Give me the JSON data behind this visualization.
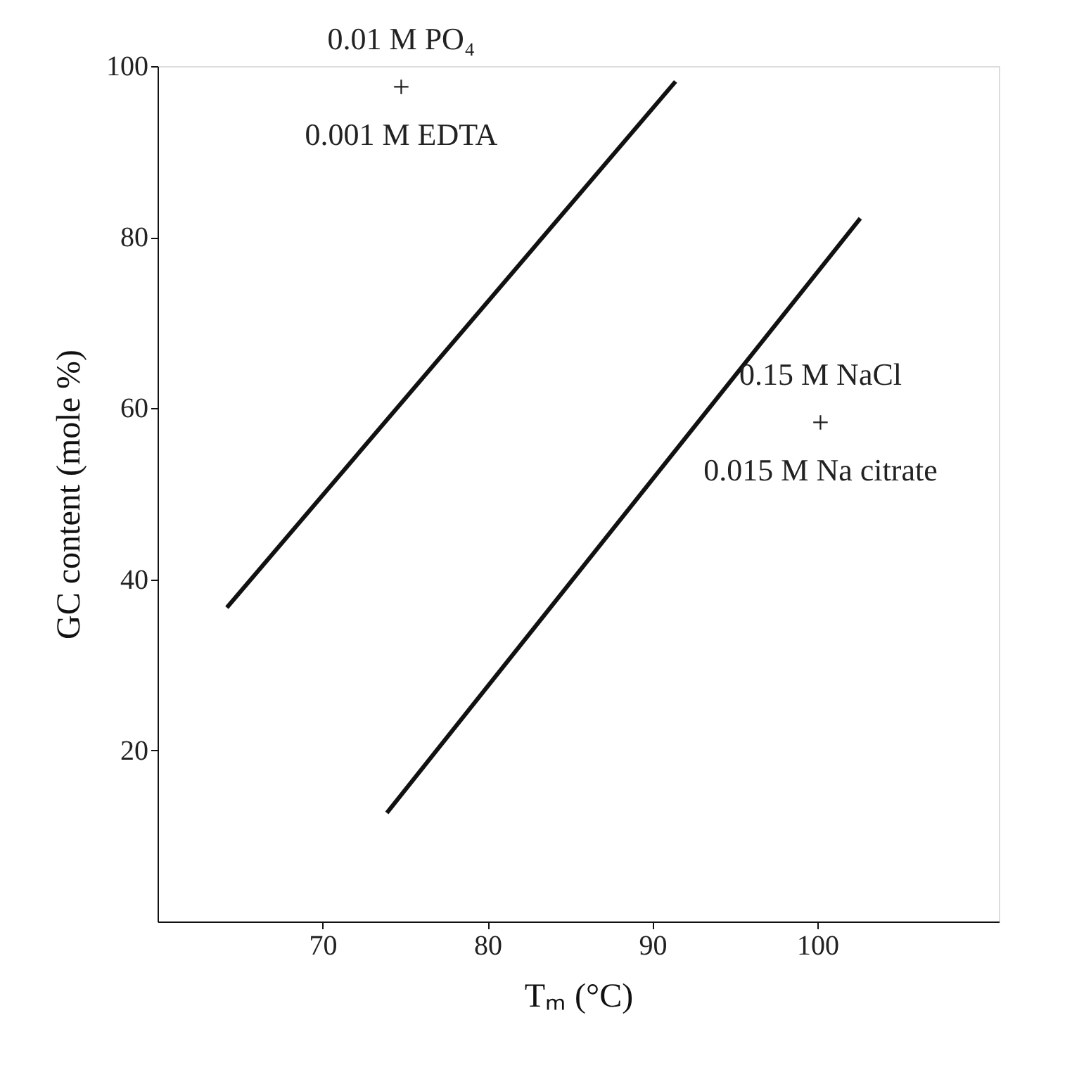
{
  "chart_data": {
    "type": "line",
    "xlabel": "Tₘ (°C)",
    "ylabel": "GC content (mole %)",
    "xlim": [
      60,
      111
    ],
    "xticks": [
      70,
      80,
      90,
      100
    ],
    "ylim": [
      0,
      100
    ],
    "yticks": [
      20,
      40,
      60,
      80,
      100
    ],
    "grid": false,
    "marker": "none",
    "line_style": "solid",
    "series": [
      {
        "name": "0.01 M PO₄\n+\n0.001 M EDTA",
        "color": "#111111",
        "x": [
          64.2,
          91.4
        ],
        "values": [
          36.7,
          98.2
        ]
      },
      {
        "name": "0.15 M NaCl\n+\n0.015 M Na citrate",
        "color": "#111111",
        "x": [
          73.9,
          102.6
        ],
        "values": [
          12.7,
          82.2
        ]
      }
    ]
  }
}
